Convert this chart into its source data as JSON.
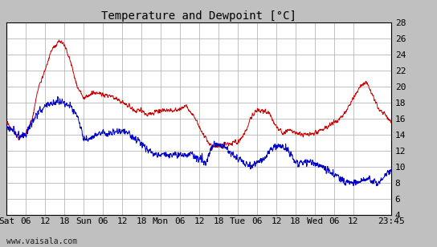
{
  "title": "Temperature and Dewpoint [°C]",
  "ylabel_right_ticks": [
    4,
    6,
    8,
    10,
    12,
    14,
    16,
    18,
    20,
    22,
    24,
    26,
    28
  ],
  "ylim": [
    4,
    28
  ],
  "xlim": [
    0,
    119.75
  ],
  "x_tick_pos": [
    0,
    6,
    12,
    18,
    24,
    30,
    36,
    42,
    48,
    54,
    60,
    66,
    72,
    78,
    84,
    90,
    96,
    102,
    108,
    119.75
  ],
  "x_tick_labels": [
    "Sat",
    "06",
    "12",
    "18",
    "Sun",
    "06",
    "12",
    "18",
    "Mon",
    "06",
    "12",
    "18",
    "Tue",
    "06",
    "12",
    "18",
    "Wed",
    "06",
    "12",
    "23:45"
  ],
  "watermark": "www.vaisala.com",
  "temp_color": "#cc0000",
  "dewp_color": "#0000cc",
  "plot_bg_color": "#ffffff",
  "fig_bg_color": "#c0c0c0",
  "grid_color": "#aaaaaa",
  "title_fontsize": 10,
  "tick_fontsize": 8,
  "watermark_fontsize": 7,
  "line_width": 0.7,
  "temp_key_times": [
    0,
    2,
    4,
    6,
    8,
    10,
    12,
    14,
    16,
    17,
    18,
    20,
    22,
    24,
    26,
    28,
    30,
    32,
    34,
    36,
    38,
    40,
    42,
    44,
    46,
    48,
    50,
    52,
    54,
    56,
    58,
    60,
    62,
    64,
    66,
    68,
    70,
    72,
    74,
    76,
    78,
    80,
    82,
    84,
    86,
    88,
    90,
    92,
    94,
    96,
    98,
    100,
    102,
    104,
    106,
    108,
    110,
    112,
    114,
    116,
    118,
    119.75
  ],
  "temp_key_vals": [
    15.5,
    14.5,
    13.5,
    14,
    16,
    20,
    22,
    24.5,
    25.5,
    25.8,
    25.2,
    23,
    20,
    18.5,
    19,
    19.2,
    19,
    18.8,
    18.5,
    18,
    17.5,
    17,
    17,
    16.5,
    16.8,
    17,
    17,
    17,
    17.2,
    17.5,
    16.5,
    15,
    13.5,
    12.5,
    12.5,
    12.8,
    13,
    13,
    14,
    16,
    17,
    17,
    16.5,
    15,
    14.2,
    14.5,
    14.2,
    14,
    14,
    14.2,
    14.5,
    15,
    15.5,
    16,
    17,
    18.5,
    20,
    20.5,
    19,
    17,
    16.5,
    15.5
  ],
  "dewp_key_times": [
    0,
    2,
    4,
    6,
    8,
    10,
    12,
    14,
    16,
    18,
    20,
    22,
    24,
    26,
    28,
    30,
    32,
    34,
    36,
    38,
    40,
    42,
    44,
    46,
    48,
    50,
    52,
    54,
    56,
    58,
    60,
    62,
    64,
    66,
    68,
    70,
    72,
    74,
    76,
    78,
    80,
    82,
    84,
    86,
    88,
    90,
    92,
    94,
    96,
    98,
    100,
    102,
    104,
    106,
    108,
    110,
    112,
    114,
    116,
    118,
    119.75
  ],
  "dewp_key_vals": [
    15,
    14.5,
    13.8,
    14,
    15.5,
    17,
    17.5,
    18,
    18.2,
    17.8,
    17.5,
    16.5,
    13.5,
    13.5,
    14,
    14.2,
    14,
    14.5,
    14.5,
    14.2,
    13.5,
    13,
    12,
    11.5,
    11.5,
    11.5,
    11.5,
    11.5,
    11.5,
    11.5,
    11,
    10.5,
    12.5,
    13,
    12.5,
    11.5,
    11,
    10.5,
    10,
    10.5,
    11,
    12,
    12.5,
    12.5,
    12,
    10.5,
    10.5,
    10.5,
    10.5,
    10,
    9.5,
    9,
    8.5,
    8,
    8,
    8,
    8.5,
    8,
    8,
    9,
    9.5
  ],
  "noise_seed": 17
}
